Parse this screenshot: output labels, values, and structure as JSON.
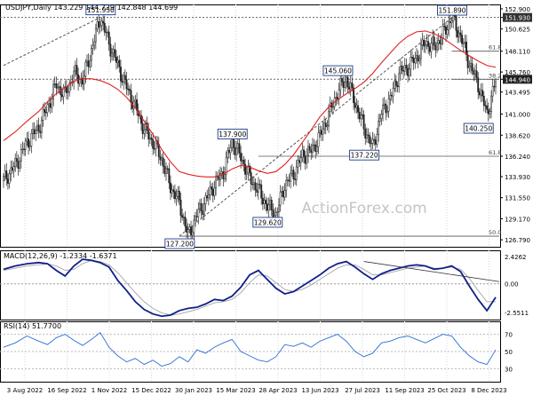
{
  "chart_data": {
    "type": "candlestick",
    "symbol_header": "USDJPY,Daily  143.229 144.729 142.848 144.699",
    "watermark": "ActionForex.com",
    "last_price": "144.940",
    "price_axis": {
      "ticks": [
        "152.900",
        "151.930",
        "150.625",
        "148.110",
        "145.760",
        "144.940",
        "143.495",
        "141.000",
        "138.620",
        "136.240",
        "133.930",
        "131.550",
        "129.170",
        "126.790"
      ],
      "ylim": [
        126.0,
        153.4
      ]
    },
    "x_axis": {
      "ticks": [
        "3 Aug 2022",
        "16 Sep 2022",
        "1 Nov 2022",
        "15 Dec 2022",
        "30 Jan 2023",
        "15 Mar 2023",
        "28 Apr 2023",
        "13 Jun 2023",
        "27 Jul 2023",
        "11 Sep 2023",
        "25 Oct 2023",
        "8 Dec 2023"
      ]
    },
    "price_series": {
      "x": [
        0,
        8,
        16,
        24,
        30,
        36,
        42,
        48,
        54,
        60,
        66,
        72,
        78,
        84,
        90,
        96,
        102,
        108,
        114,
        120,
        126,
        132,
        138,
        144,
        150,
        156,
        162,
        168,
        174,
        180,
        186,
        192,
        198,
        204,
        210,
        216,
        222,
        228,
        234,
        240,
        246,
        252,
        258,
        264,
        270,
        276,
        282,
        288,
        294,
        300,
        306,
        312,
        318,
        324,
        330,
        336
      ],
      "close": [
        133.5,
        135.2,
        137.8,
        139.5,
        141.8,
        144.3,
        143.2,
        145.6,
        144.8,
        148.2,
        151.93,
        149.0,
        146.5,
        144.0,
        141.8,
        139.3,
        137.8,
        135.9,
        132.8,
        131.0,
        127.2,
        129.6,
        131.2,
        133.1,
        134.4,
        137.9,
        136.1,
        133.8,
        132.4,
        130.6,
        129.62,
        133.0,
        134.2,
        136.3,
        136.8,
        138.5,
        140.9,
        143.5,
        145.06,
        142.3,
        139.5,
        137.22,
        141.1,
        142.7,
        145.6,
        146.3,
        147.4,
        149.1,
        148.6,
        150.0,
        151.89,
        149.8,
        146.7,
        144.4,
        141.0,
        144.7
      ]
    },
    "moving_average": {
      "values": [
        138.0,
        139.0,
        140.2,
        141.3,
        142.4,
        143.3,
        144.0,
        144.7,
        145.0,
        145.0,
        144.8,
        144.4,
        143.8,
        142.9,
        141.7,
        140.2,
        138.7,
        137.0,
        135.6,
        134.5,
        134.2,
        134.0,
        133.9,
        133.9,
        134.2,
        134.8,
        135.2,
        135.0,
        134.6,
        134.3,
        134.5,
        135.3,
        136.4,
        137.8,
        139.2,
        140.7,
        141.8,
        142.6,
        143.3,
        143.9,
        144.6,
        145.6,
        146.8,
        147.9,
        149.0,
        149.8,
        150.3,
        150.4,
        150.1,
        149.6,
        148.9,
        148.2,
        147.6,
        147.0,
        146.5,
        146.3
      ]
    },
    "annotations": [
      {
        "label": "151.930",
        "x": 66,
        "price": 151.93
      },
      {
        "label": "127.200",
        "x": 120,
        "price": 127.2
      },
      {
        "label": "137.900",
        "x": 156,
        "price": 137.9
      },
      {
        "label": "129.620",
        "x": 180,
        "price": 129.62
      },
      {
        "label": "145.060",
        "x": 228,
        "price": 145.06
      },
      {
        "label": "137.220",
        "x": 246,
        "price": 137.22
      },
      {
        "label": "151.890",
        "x": 306,
        "price": 151.89
      },
      {
        "label": "140.250",
        "x": 324,
        "price": 140.25
      }
    ],
    "fib_levels": [
      {
        "label": "61.8",
        "price": 136.24
      },
      {
        "label": "50.0",
        "price": 127.2
      },
      {
        "label": "61.8",
        "price": 148.11
      },
      {
        "label": "38.2",
        "price": 144.94
      }
    ],
    "macd": {
      "label": "MACD(12,26,9) -1.2334 -1.6371",
      "ticks": [
        "2.4262",
        "0.00",
        "-2.5511"
      ],
      "ylim": [
        -3.2,
        3.0
      ],
      "macd_values": [
        1.3,
        1.6,
        1.8,
        1.9,
        1.8,
        1.2,
        0.7,
        1.6,
        2.2,
        2.1,
        1.9,
        1.5,
        0.3,
        -0.6,
        -1.6,
        -2.3,
        -2.7,
        -2.9,
        -2.8,
        -2.4,
        -2.2,
        -2.1,
        -1.8,
        -1.4,
        -1.5,
        -1.1,
        -0.3,
        0.8,
        1.2,
        0.4,
        -0.4,
        -0.9,
        -0.7,
        -0.2,
        0.3,
        0.8,
        1.4,
        1.8,
        2.0,
        1.5,
        0.9,
        0.4,
        0.9,
        1.2,
        1.4,
        1.6,
        1.7,
        1.6,
        1.3,
        1.4,
        1.6,
        1.1,
        -0.2,
        -1.4,
        -2.4,
        -1.2
      ],
      "signal_values": [
        1.2,
        1.4,
        1.6,
        1.7,
        1.8,
        1.6,
        1.2,
        1.3,
        1.8,
        2.1,
        2.0,
        1.7,
        1.0,
        0.1,
        -0.8,
        -1.6,
        -2.2,
        -2.6,
        -2.8,
        -2.7,
        -2.5,
        -2.3,
        -2.0,
        -1.7,
        -1.6,
        -1.4,
        -0.8,
        0.1,
        0.8,
        0.7,
        0.1,
        -0.5,
        -0.7,
        -0.5,
        -0.1,
        0.4,
        0.9,
        1.4,
        1.7,
        1.7,
        1.3,
        0.8,
        0.8,
        1.0,
        1.2,
        1.4,
        1.5,
        1.6,
        1.4,
        1.4,
        1.5,
        1.3,
        0.5,
        -0.6,
        -1.6,
        -1.6
      ]
    },
    "rsi": {
      "label": "RSI(14) 51.7700",
      "ticks": [
        "70",
        "50",
        "30"
      ],
      "ylim": [
        15,
        85
      ],
      "values": [
        55,
        60,
        68,
        62,
        58,
        66,
        70,
        63,
        57,
        64,
        72,
        55,
        45,
        38,
        42,
        35,
        40,
        33,
        36,
        44,
        38,
        52,
        48,
        55,
        60,
        64,
        50,
        45,
        40,
        38,
        44,
        58,
        56,
        60,
        55,
        62,
        66,
        70,
        62,
        50,
        44,
        48,
        60,
        62,
        66,
        68,
        64,
        60,
        65,
        70,
        68,
        55,
        45,
        38,
        35,
        52
      ]
    }
  }
}
